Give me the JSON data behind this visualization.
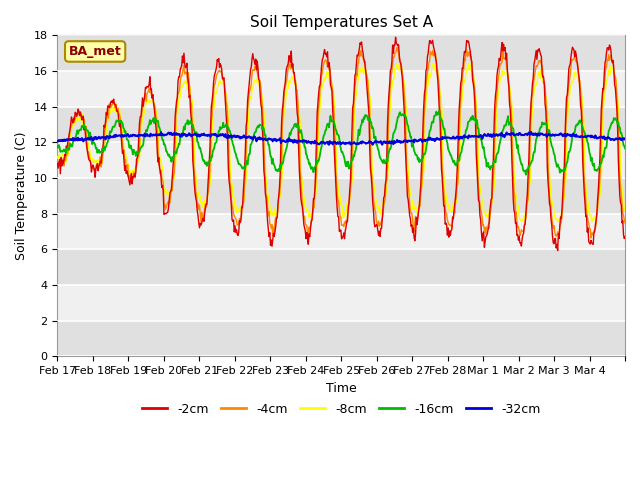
{
  "title": "Soil Temperatures Set A",
  "xlabel": "Time",
  "ylabel": "Soil Temperature (C)",
  "ylim": [
    0,
    18
  ],
  "yticks": [
    0,
    2,
    4,
    6,
    8,
    10,
    12,
    14,
    16,
    18
  ],
  "colors": {
    "-2cm": "#dd0000",
    "-4cm": "#ff8800",
    "-8cm": "#ffff00",
    "-16cm": "#00bb00",
    "-32cm": "#0000dd"
  },
  "legend_labels": [
    "-2cm",
    "-4cm",
    "-8cm",
    "-16cm",
    "-32cm"
  ],
  "annotation_text": "BA_met",
  "annotation_bg": "#ffffaa",
  "annotation_border": "#aa8800",
  "plot_bg_light": "#f0f0f0",
  "plot_bg_dark": "#d8d8d8",
  "x_tick_labels": [
    "Feb 17",
    "Feb 18",
    "Feb 19",
    "Feb 20",
    "Feb 21",
    "Feb 22",
    "Feb 23",
    "Feb 24",
    "Feb 25",
    "Feb 26",
    "Feb 27",
    "Feb 28",
    "Mar 1",
    "Mar 2",
    "Mar 3",
    "Mar 4"
  ],
  "num_days": 16
}
